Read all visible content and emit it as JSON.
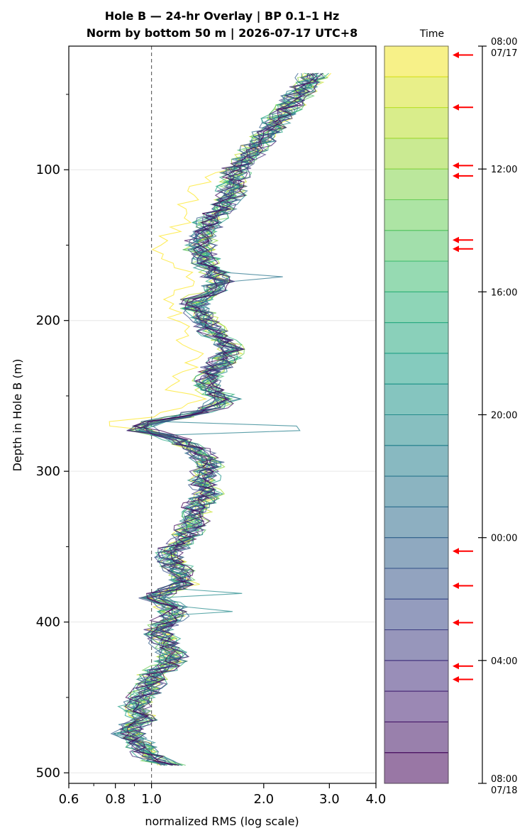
{
  "title_line1": "Hole B — 24-hr Overlay  |  BP 0.1–1 Hz",
  "title_line2": "Norm by bottom 50 m  |  2026-07-17 UTC+8",
  "chart_data": {
    "type": "line",
    "orientation": "vertical-profile",
    "xlabel": "normalized RMS  (log scale)",
    "ylabel": "Depth in Hole B (m)",
    "xscale": "log",
    "xlim": [
      0.6,
      4.0
    ],
    "ylim": [
      507,
      18
    ],
    "x_ticks": [
      0.6,
      0.8,
      1.0,
      2.0,
      3.0,
      4.0
    ],
    "x_tick_labels": [
      "0.6",
      "0.8",
      "1.0",
      "2.0",
      "3.0",
      "4.0"
    ],
    "y_ticks": [
      100,
      200,
      300,
      400,
      500
    ],
    "y_tick_labels": [
      "100",
      "200",
      "300",
      "400",
      "500"
    ],
    "reference_line_x": 1.0,
    "grid": "horizontal",
    "series_count": 24,
    "base_profile": [
      [
        36,
        2.75
      ],
      [
        45,
        2.6
      ],
      [
        60,
        2.3
      ],
      [
        75,
        2.05
      ],
      [
        90,
        1.85
      ],
      [
        100,
        1.7
      ],
      [
        115,
        1.65
      ],
      [
        125,
        1.55
      ],
      [
        135,
        1.42
      ],
      [
        145,
        1.38
      ],
      [
        155,
        1.35
      ],
      [
        165,
        1.45
      ],
      [
        175,
        1.55
      ],
      [
        185,
        1.35
      ],
      [
        190,
        1.3
      ],
      [
        200,
        1.4
      ],
      [
        210,
        1.5
      ],
      [
        220,
        1.65
      ],
      [
        235,
        1.45
      ],
      [
        245,
        1.4
      ],
      [
        252,
        1.58
      ],
      [
        258,
        1.45
      ],
      [
        264,
        1.2
      ],
      [
        268,
        0.95
      ],
      [
        272,
        0.92
      ],
      [
        278,
        1.15
      ],
      [
        285,
        1.3
      ],
      [
        295,
        1.45
      ],
      [
        305,
        1.38
      ],
      [
        315,
        1.42
      ],
      [
        325,
        1.32
      ],
      [
        335,
        1.3
      ],
      [
        345,
        1.22
      ],
      [
        355,
        1.12
      ],
      [
        365,
        1.18
      ],
      [
        375,
        1.22
      ],
      [
        383,
        1.0
      ],
      [
        388,
        1.12
      ],
      [
        395,
        1.15
      ],
      [
        405,
        1.05
      ],
      [
        415,
        1.1
      ],
      [
        425,
        1.15
      ],
      [
        435,
        1.02
      ],
      [
        445,
        0.98
      ],
      [
        455,
        0.9
      ],
      [
        465,
        0.95
      ],
      [
        472,
        0.86
      ],
      [
        480,
        0.92
      ],
      [
        490,
        1.0
      ],
      [
        497,
        1.18
      ]
    ],
    "spikes": [
      {
        "series": 14,
        "depth": 170,
        "x": 2.25
      },
      {
        "series": 13,
        "depth": 270,
        "x": 2.45
      },
      {
        "series": 13,
        "depth": 272,
        "x": 2.5
      },
      {
        "series": 12,
        "depth": 382,
        "x": 1.75
      },
      {
        "series": 12,
        "depth": 393,
        "x": 1.65
      }
    ],
    "outlier_series": {
      "series": 0,
      "offset_range": [
        100,
        270
      ],
      "factor": 0.82
    },
    "colorbar": {
      "label": "Time",
      "segments": 24,
      "colormap": "viridis",
      "ticks": [
        {
          "label_line1": "08:00",
          "label_line2": "07/17",
          "frac": 0.0
        },
        {
          "label_line1": "12:00",
          "label_line2": "",
          "frac": 0.1667
        },
        {
          "label_line1": "16:00",
          "label_line2": "",
          "frac": 0.3333
        },
        {
          "label_line1": "20:00",
          "label_line2": "",
          "frac": 0.5
        },
        {
          "label_line1": "00:00",
          "label_line2": "",
          "frac": 0.6667
        },
        {
          "label_line1": "04:00",
          "label_line2": "",
          "frac": 0.8333
        },
        {
          "label_line1": "08:00",
          "label_line2": "07/18",
          "frac": 1.0
        }
      ],
      "arrow_fracs": [
        0.012,
        0.083,
        0.162,
        0.176,
        0.263,
        0.275,
        0.685,
        0.732,
        0.782,
        0.841,
        0.859
      ],
      "arrow_color": "#ff0000"
    }
  }
}
